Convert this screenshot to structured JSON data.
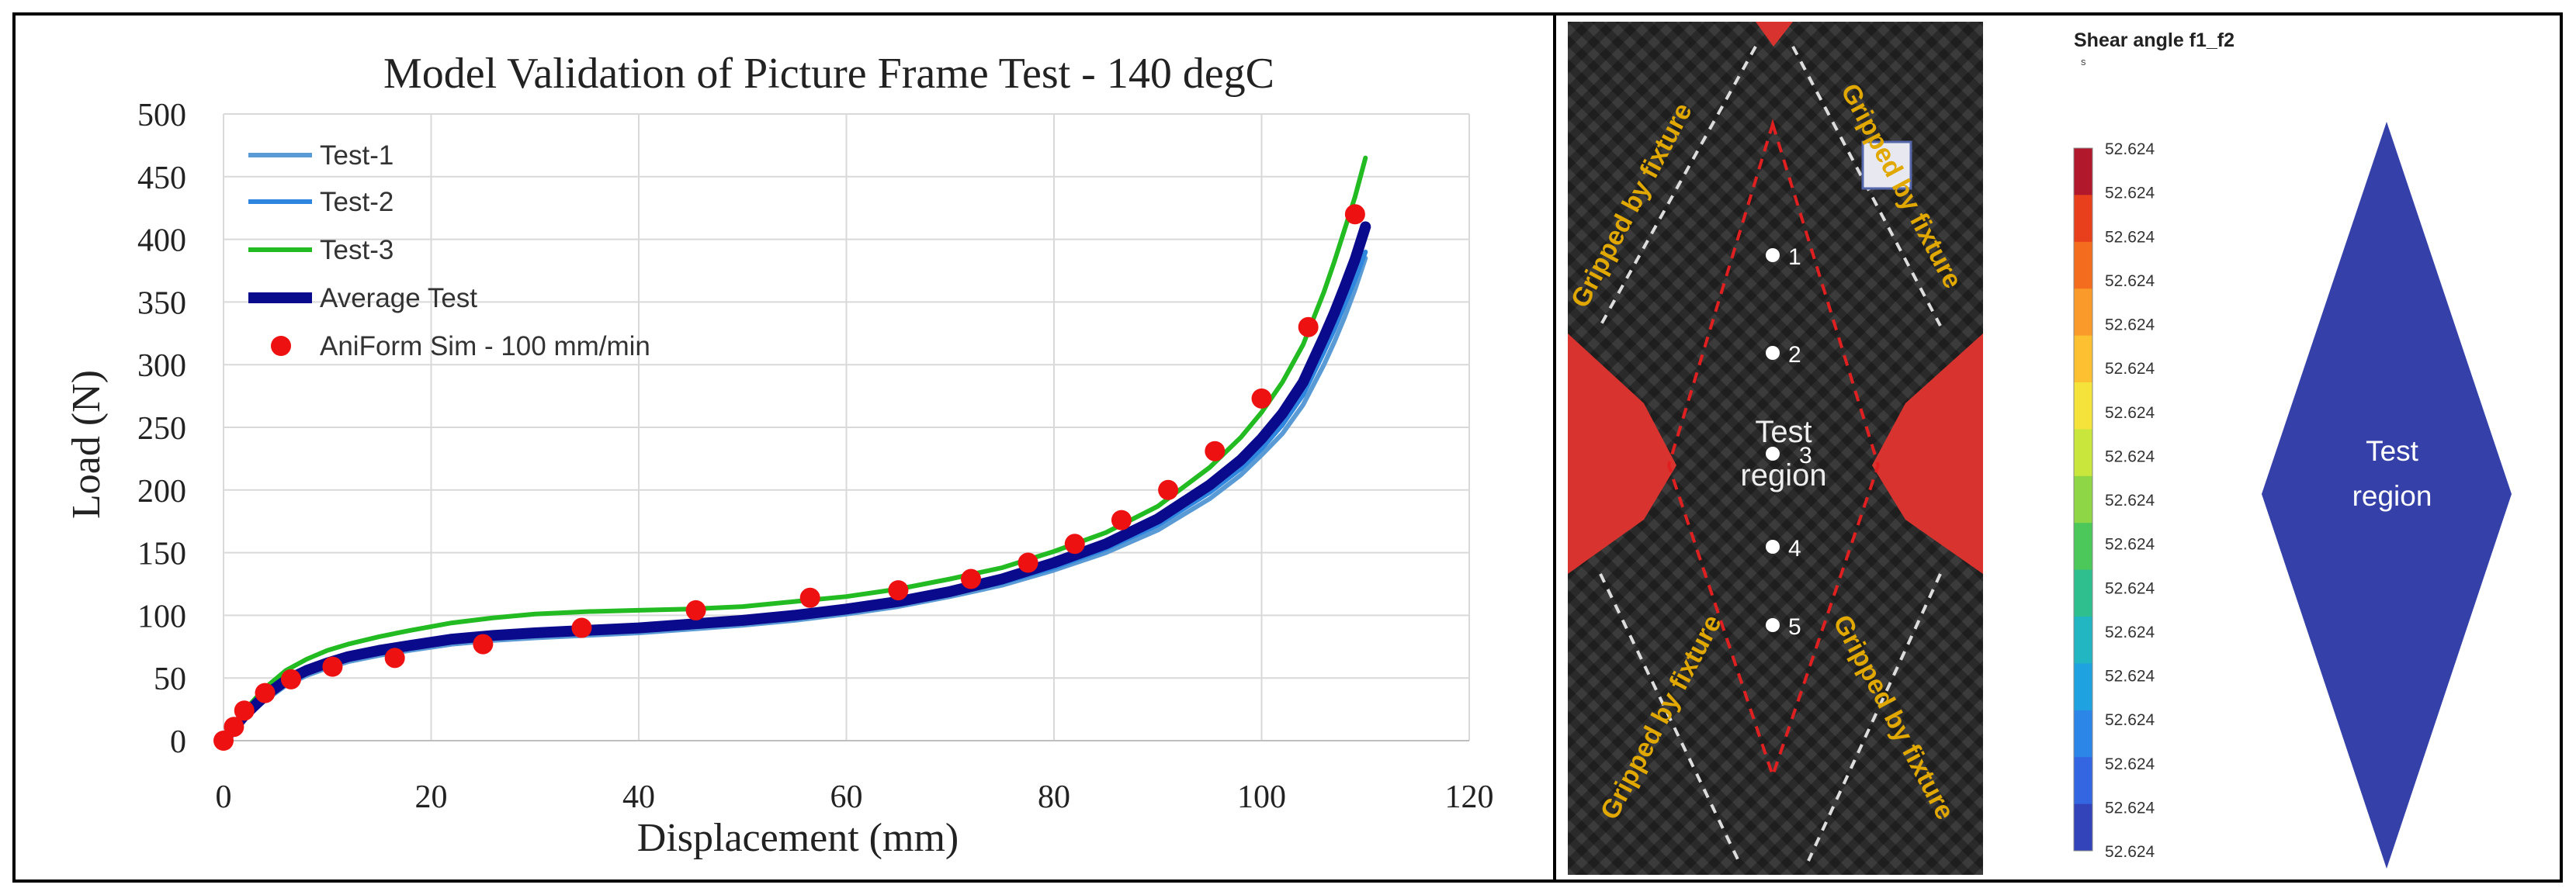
{
  "chart_data": {
    "type": "line",
    "title": "Model Validation of Picture Frame Test - 140 degC",
    "xlabel": "Displacement (mm)",
    "ylabel": "Load (N)",
    "xlim": [
      0,
      120
    ],
    "ylim": [
      0,
      500
    ],
    "xticks": [
      "0",
      "20",
      "40",
      "60",
      "80",
      "100",
      "120"
    ],
    "yticks": [
      "0",
      "50",
      "100",
      "150",
      "200",
      "250",
      "300",
      "350",
      "400",
      "450",
      "500"
    ],
    "grid": true,
    "legend_position": "top-left",
    "series": [
      {
        "name": "Test-1",
        "color": "#5B9BD5",
        "style": "line",
        "x": [
          0,
          2,
          4,
          6,
          8,
          10,
          12,
          15,
          18,
          22,
          26,
          30,
          35,
          40,
          45,
          50,
          55,
          60,
          65,
          70,
          75,
          80,
          85,
          90,
          95,
          98,
          100,
          102,
          104,
          106,
          107,
          108,
          109,
          110
        ],
        "y": [
          0,
          18,
          32,
          44,
          52,
          58,
          63,
          68,
          72,
          77,
          80,
          82,
          84,
          86,
          89,
          92,
          96,
          101,
          107,
          115,
          124,
          136,
          150,
          168,
          193,
          212,
          228,
          245,
          268,
          300,
          318,
          338,
          360,
          385
        ]
      },
      {
        "name": "Test-2",
        "color": "#2E86DE",
        "style": "line",
        "x": [
          0,
          2,
          4,
          6,
          8,
          10,
          12,
          15,
          18,
          22,
          26,
          30,
          35,
          40,
          45,
          50,
          55,
          60,
          65,
          70,
          75,
          80,
          85,
          90,
          95,
          98,
          100,
          102,
          104,
          106,
          107,
          108,
          109,
          110
        ],
        "y": [
          0,
          19,
          34,
          46,
          54,
          60,
          65,
          70,
          74,
          79,
          82,
          84,
          86,
          88,
          91,
          94,
          98,
          103,
          109,
          117,
          126,
          138,
          153,
          172,
          198,
          217,
          233,
          252,
          276,
          310,
          328,
          348,
          368,
          390
        ]
      },
      {
        "name": "Test-3",
        "color": "#22BB22",
        "style": "line",
        "x": [
          0,
          2,
          4,
          6,
          8,
          10,
          12,
          15,
          18,
          22,
          26,
          30,
          35,
          40,
          45,
          50,
          55,
          60,
          65,
          70,
          75,
          80,
          85,
          90,
          95,
          98,
          100,
          102,
          104,
          106,
          107,
          108,
          109,
          110
        ],
        "y": [
          0,
          24,
          42,
          56,
          65,
          72,
          77,
          83,
          88,
          94,
          98,
          101,
          103,
          104,
          105,
          107,
          111,
          115,
          121,
          129,
          138,
          151,
          166,
          187,
          218,
          242,
          262,
          286,
          316,
          358,
          382,
          408,
          434,
          465
        ]
      },
      {
        "name": "Average Test",
        "color": "#0A0A8C",
        "style": "thick-line",
        "x": [
          0,
          2,
          4,
          6,
          8,
          10,
          12,
          15,
          18,
          22,
          26,
          30,
          35,
          40,
          45,
          50,
          55,
          60,
          65,
          70,
          75,
          80,
          85,
          90,
          95,
          98,
          100,
          102,
          104,
          106,
          107,
          108,
          109,
          110
        ],
        "y": [
          0,
          20,
          36,
          48,
          56,
          62,
          67,
          72,
          76,
          81,
          84,
          86,
          88,
          90,
          93,
          96,
          100,
          105,
          111,
          119,
          129,
          142,
          157,
          177,
          204,
          224,
          241,
          261,
          286,
          322,
          341,
          362,
          384,
          410
        ]
      },
      {
        "name": "AniForm Sim - 100 mm/min",
        "color": "#EE1111",
        "style": "markers",
        "x": [
          0,
          1,
          2,
          4,
          6.5,
          10.5,
          16.5,
          25,
          34.5,
          45.5,
          56.5,
          65,
          72,
          77.5,
          82,
          86.5,
          91,
          95.5,
          100,
          104.5,
          109
        ],
        "y": [
          0,
          11,
          24,
          38,
          49,
          59,
          66,
          77,
          90,
          104,
          114,
          120,
          129,
          142,
          157,
          176,
          200,
          231,
          273,
          330,
          420
        ]
      }
    ]
  },
  "photo_panel": {
    "labels": {
      "gripped_top_left": "Gripped by fixture",
      "gripped_top_right": "Gripped by fixture",
      "gripped_bottom_left": "Gripped by fixture",
      "gripped_bottom_right": "Gripped by fixture",
      "test_region_1": "Test",
      "test_region_2": "region",
      "point_1": "1",
      "point_2": "2",
      "point_3": "3",
      "point_4": "4",
      "point_5": "5"
    },
    "colors": {
      "background": "#D8332E",
      "fabric": "#2B2B2B",
      "label": "#E0A800"
    }
  },
  "sim_panel": {
    "colorbar_title": "Shear angle f1_f2",
    "colorbar_unit": "s",
    "colorbar_values": [
      "52.624",
      "52.624",
      "52.624",
      "52.624",
      "52.624",
      "52.624",
      "52.624",
      "52.624",
      "52.624",
      "52.624",
      "52.624",
      "52.624",
      "52.624",
      "52.624",
      "52.624",
      "52.624",
      "52.624"
    ],
    "colorbar_colors": [
      "#B2182B",
      "#E8401C",
      "#F46D1E",
      "#F99A2A",
      "#FDC030",
      "#F5E33B",
      "#C8E63C",
      "#8ED646",
      "#4CC75A",
      "#2FBF8F",
      "#22B5C2",
      "#1FA3E0",
      "#2B86E8",
      "#3366E0",
      "#3344BB"
    ],
    "diamond_label_1": "Test",
    "diamond_label_2": "region",
    "diamond_color": "#3540A8"
  }
}
